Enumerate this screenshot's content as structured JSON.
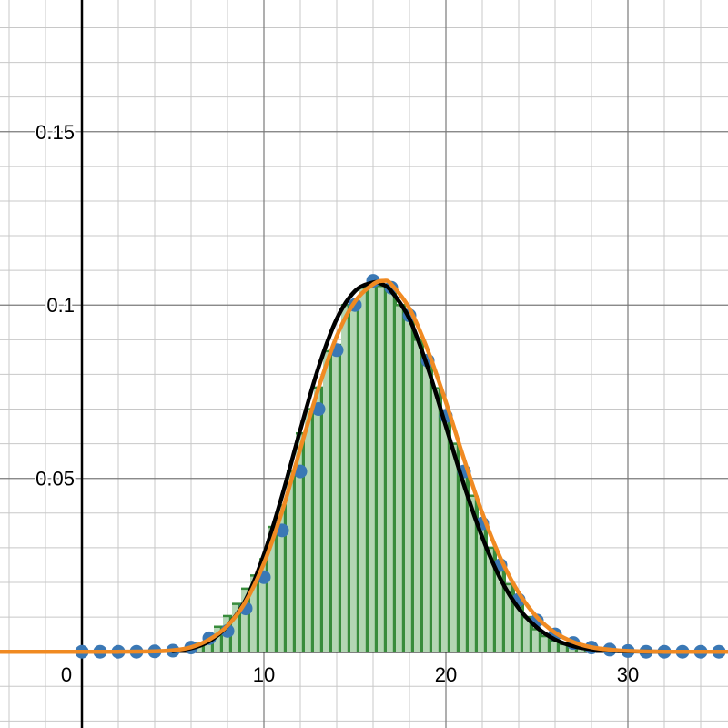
{
  "chart_data": {
    "type": "bar",
    "title": "",
    "xlabel": "",
    "ylabel": "",
    "xlim": [
      -4.5,
      35.5
    ],
    "ylim": [
      -0.022,
      0.188
    ],
    "grid": true,
    "legend": "none",
    "x_ticks": [
      {
        "value": 0,
        "label": "0"
      },
      {
        "value": 10,
        "label": "10"
      },
      {
        "value": 20,
        "label": "20"
      },
      {
        "value": 30,
        "label": "30"
      }
    ],
    "y_ticks": [
      {
        "value": 0.05,
        "label": "0.05"
      },
      {
        "value": 0.1,
        "label": "0.1"
      },
      {
        "value": 0.15,
        "label": "0.15"
      }
    ],
    "histogram": {
      "bin_width": 0.5,
      "x": [
        6,
        6.5,
        7,
        7.5,
        8,
        8.5,
        9,
        9.5,
        10,
        10.5,
        11,
        11.5,
        12,
        12.5,
        13,
        13.5,
        14,
        14.5,
        15,
        15.5,
        16,
        16.5,
        17,
        17.5,
        18,
        18.5,
        19,
        19.5,
        20,
        20.5,
        21,
        21.5,
        22,
        22.5,
        23,
        23.5,
        24,
        24.5,
        25,
        25.5,
        26,
        26.5,
        27,
        27.5,
        28
      ],
      "values": [
        0.0013,
        0.0023,
        0.0043,
        0.0072,
        0.0103,
        0.0138,
        0.0182,
        0.022,
        0.0267,
        0.036,
        0.0422,
        0.052,
        0.063,
        0.07,
        0.0762,
        0.0867,
        0.0885,
        0.1,
        0.0987,
        0.105,
        0.106,
        0.1055,
        0.105,
        0.1,
        0.098,
        0.09,
        0.083,
        0.076,
        0.0685,
        0.06,
        0.052,
        0.045,
        0.0375,
        0.03,
        0.025,
        0.0195,
        0.014,
        0.01,
        0.0065,
        0.0045,
        0.003,
        0.0022,
        0.0015,
        0.001,
        0.0007
      ]
    },
    "series": [
      {
        "type": "scatter",
        "x": [
          0,
          1,
          2,
          3,
          4,
          5,
          6,
          7,
          8,
          9,
          10,
          11,
          12,
          13,
          14,
          15,
          16,
          17,
          18,
          19,
          20,
          21,
          22,
          23,
          24,
          25,
          26,
          27,
          28,
          29,
          30,
          31,
          32,
          33,
          34,
          35
        ],
        "values": [
          0,
          0,
          0,
          0,
          0.0001,
          0.0003,
          0.0012,
          0.0039,
          0.006,
          0.0125,
          0.0215,
          0.035,
          0.052,
          0.07,
          0.087,
          0.1,
          0.107,
          0.105,
          0.097,
          0.084,
          0.068,
          0.052,
          0.037,
          0.025,
          0.015,
          0.009,
          0.005,
          0.0025,
          0.0012,
          0.0006,
          0.0002,
          0,
          0,
          0,
          0,
          0
        ],
        "color": "#3a78b5"
      },
      {
        "type": "line",
        "x": [
          5,
          6,
          7,
          8,
          9,
          10,
          11,
          12,
          13,
          14,
          15,
          16,
          16.5,
          17,
          18,
          19,
          20,
          21,
          22,
          23,
          24,
          25,
          26,
          27,
          28,
          29,
          30,
          32,
          35
        ],
        "values": [
          0.0002,
          0.001,
          0.003,
          0.0075,
          0.015,
          0.028,
          0.045,
          0.064,
          0.082,
          0.096,
          0.104,
          0.1065,
          0.106,
          0.104,
          0.096,
          0.082,
          0.065,
          0.048,
          0.033,
          0.021,
          0.0125,
          0.007,
          0.0035,
          0.0016,
          0.0007,
          0.0003,
          0.0001,
          0,
          0
        ],
        "color": "#000000"
      },
      {
        "type": "line",
        "x": [
          -4.5,
          0,
          2,
          4,
          5,
          6,
          7,
          8,
          9,
          10,
          11,
          12,
          13,
          14,
          15,
          16,
          16.6,
          17,
          18,
          19,
          20,
          21,
          22,
          23,
          24,
          25,
          26,
          27,
          28,
          29,
          30,
          32,
          35.5
        ],
        "values": [
          0,
          0,
          0,
          0.0001,
          0.0004,
          0.0013,
          0.0035,
          0.0075,
          0.0145,
          0.0255,
          0.0405,
          0.0585,
          0.076,
          0.091,
          0.101,
          0.106,
          0.107,
          0.106,
          0.099,
          0.087,
          0.072,
          0.0555,
          0.04,
          0.027,
          0.017,
          0.01,
          0.0055,
          0.0028,
          0.0013,
          0.0006,
          0.0002,
          0,
          0
        ],
        "color": "#f08a22"
      }
    ]
  }
}
